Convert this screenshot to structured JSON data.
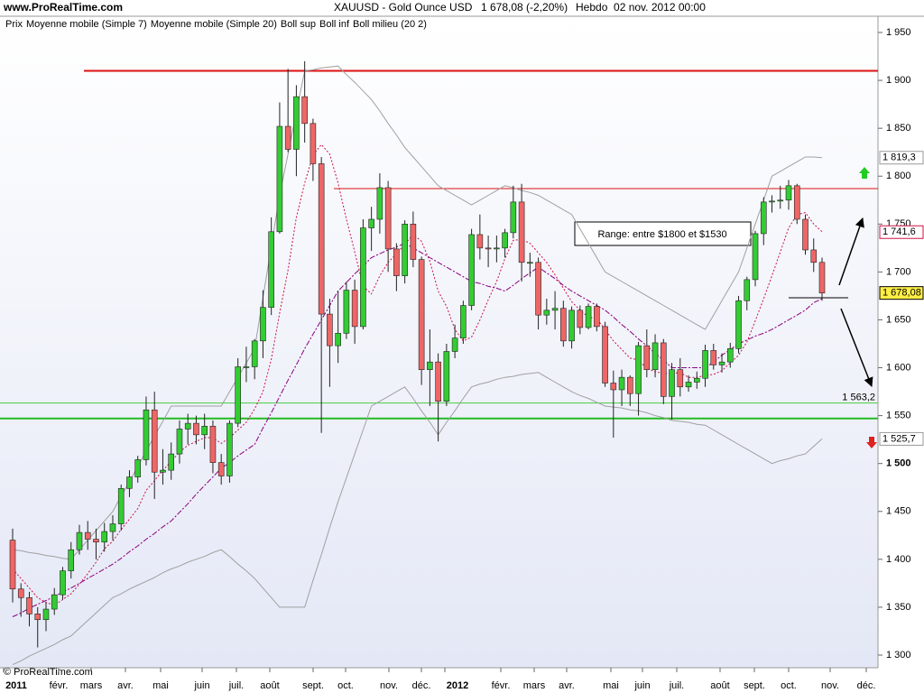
{
  "site": "www.ProRealTime.com",
  "footer": "© ProRealTime.com",
  "chart_data": {
    "type": "candlestick",
    "title": "XAUUSD - Gold Ounce USD",
    "last": "1 678,08 (-2,20%)",
    "period": "Hebdo  02 nov. 2012 00:00",
    "price_name": "Prix",
    "up_color": "#33cc33",
    "down_color": "#ee6666",
    "xtick_labels": [
      "2011",
      "févr.",
      "mars",
      "avr.",
      "mai",
      "juin",
      "juil.",
      "août",
      "sept.",
      "oct.",
      "nov.",
      "déc.",
      "2012",
      "févr.",
      "mars",
      "avr.",
      "mai",
      "juin",
      "juil.",
      "août",
      "sept.",
      "oct.",
      "nov.",
      "déc."
    ],
    "ylim": [
      1300,
      1950
    ],
    "yticks": [
      {
        "value": 1300,
        "label": "1 300"
      },
      {
        "value": 1350,
        "label": "1 350"
      },
      {
        "value": 1400,
        "label": "1 400"
      },
      {
        "value": 1450,
        "label": "1 450"
      },
      {
        "value": 1500,
        "label": "1 500"
      },
      {
        "value": 1550,
        "label": "1 550"
      },
      {
        "value": 1600,
        "label": "1 600"
      },
      {
        "value": 1650,
        "label": "1 650"
      },
      {
        "value": 1700,
        "label": "1 700"
      },
      {
        "value": 1750,
        "label": "1 750"
      },
      {
        "value": 1800,
        "label": "1 800"
      },
      {
        "value": 1850,
        "label": "1 850"
      },
      {
        "value": 1900,
        "label": "1 900"
      },
      {
        "value": 1950,
        "label": "1 950"
      }
    ],
    "open": [
      1420,
      1369,
      1360,
      1343,
      1337,
      1348,
      1363,
      1388,
      1410,
      1428,
      1421,
      1418,
      1429,
      1437,
      1474,
      1486,
      1504,
      1556,
      1491,
      1493,
      1510,
      1536,
      1542,
      1530,
      1539,
      1501,
      1487,
      1542,
      1601,
      1601,
      1628,
      1663,
      1742,
      1852,
      1828,
      1883,
      1855,
      1813,
      1656,
      1623,
      1636,
      1681,
      1643,
      1746,
      1755,
      1788,
      1724,
      1696,
      1750,
      1713,
      1598,
      1606,
      1565,
      1617,
      1631,
      1665,
      1739,
      1725,
      1724,
      1725,
      1741,
      1773,
      1710,
      1710,
      1655,
      1660,
      1662,
      1628,
      1660,
      1642,
      1664,
      1643,
      1584,
      1577,
      1590,
      1573,
      1623,
      1598,
      1626,
      1570,
      1598,
      1580,
      1585,
      1589,
      1618,
      1603,
      1606,
      1620,
      1670,
      1692,
      1740,
      1773,
      1774,
      1775,
      1790,
      1755,
      1723,
      1710
    ],
    "high": [
      1432,
      1375,
      1366,
      1350,
      1355,
      1370,
      1392,
      1418,
      1436,
      1440,
      1432,
      1438,
      1446,
      1478,
      1493,
      1508,
      1570,
      1575,
      1515,
      1522,
      1545,
      1552,
      1550,
      1552,
      1545,
      1510,
      1545,
      1610,
      1622,
      1630,
      1681,
      1757,
      1877,
      1912,
      1895,
      1920,
      1860,
      1820,
      1672,
      1680,
      1690,
      1692,
      1755,
      1768,
      1803,
      1795,
      1730,
      1754,
      1763,
      1716,
      1640,
      1615,
      1625,
      1645,
      1670,
      1745,
      1760,
      1738,
      1738,
      1745,
      1790,
      1792,
      1720,
      1715,
      1672,
      1680,
      1670,
      1664,
      1665,
      1667,
      1667,
      1648,
      1597,
      1598,
      1592,
      1627,
      1640,
      1635,
      1630,
      1605,
      1610,
      1592,
      1596,
      1624,
      1625,
      1615,
      1626,
      1675,
      1695,
      1743,
      1778,
      1780,
      1790,
      1796,
      1792,
      1760,
      1735,
      1715
    ],
    "low": [
      1355,
      1340,
      1330,
      1308,
      1325,
      1342,
      1358,
      1380,
      1405,
      1410,
      1400,
      1408,
      1420,
      1430,
      1465,
      1480,
      1498,
      1463,
      1478,
      1483,
      1500,
      1520,
      1520,
      1515,
      1490,
      1478,
      1480,
      1538,
      1585,
      1588,
      1610,
      1655,
      1740,
      1825,
      1800,
      1835,
      1795,
      1532,
      1580,
      1605,
      1630,
      1625,
      1640,
      1722,
      1740,
      1700,
      1680,
      1688,
      1705,
      1582,
      1560,
      1523,
      1560,
      1610,
      1625,
      1660,
      1713,
      1705,
      1710,
      1715,
      1735,
      1690,
      1695,
      1640,
      1645,
      1640,
      1622,
      1620,
      1635,
      1640,
      1638,
      1580,
      1527,
      1560,
      1560,
      1550,
      1590,
      1590,
      1562,
      1546,
      1570,
      1575,
      1578,
      1580,
      1598,
      1595,
      1600,
      1615,
      1660,
      1685,
      1728,
      1762,
      1766,
      1765,
      1750,
      1718,
      1700,
      1670
    ],
    "close": [
      1369,
      1360,
      1343,
      1337,
      1348,
      1363,
      1388,
      1410,
      1428,
      1421,
      1418,
      1429,
      1437,
      1474,
      1486,
      1504,
      1556,
      1491,
      1493,
      1510,
      1536,
      1542,
      1530,
      1539,
      1501,
      1487,
      1542,
      1601,
      1601,
      1628,
      1663,
      1742,
      1852,
      1828,
      1883,
      1855,
      1813,
      1656,
      1623,
      1636,
      1681,
      1643,
      1746,
      1755,
      1788,
      1724,
      1696,
      1750,
      1713,
      1598,
      1606,
      1565,
      1617,
      1631,
      1665,
      1739,
      1725,
      1724,
      1725,
      1741,
      1773,
      1710,
      1710,
      1655,
      1660,
      1662,
      1628,
      1660,
      1642,
      1664,
      1643,
      1584,
      1577,
      1590,
      1573,
      1623,
      1598,
      1626,
      1570,
      1598,
      1580,
      1585,
      1589,
      1618,
      1603,
      1606,
      1620,
      1670,
      1692,
      1740,
      1773,
      1774,
      1775,
      1790,
      1755,
      1723,
      1710,
      1678
    ],
    "series": [
      {
        "name": "Moyenne mobile (Simple 7)",
        "color": "#cc1144",
        "style": "dot",
        "values": [
          1390,
          1380,
          1370,
          1360,
          1355,
          1352,
          1358,
          1364,
          1374,
          1385,
          1397,
          1411,
          1419,
          1431,
          1442,
          1453,
          1472,
          1482,
          1493,
          1502,
          1512,
          1519,
          1523,
          1527,
          1527,
          1521,
          1527,
          1535,
          1543,
          1557,
          1575,
          1609,
          1657,
          1702,
          1757,
          1793,
          1822,
          1833,
          1823,
          1793,
          1755,
          1721,
          1685,
          1677,
          1696,
          1710,
          1719,
          1729,
          1739,
          1732,
          1711,
          1680,
          1664,
          1640,
          1628,
          1632,
          1650,
          1671,
          1690,
          1714,
          1733,
          1734,
          1730,
          1720,
          1710,
          1697,
          1683,
          1669,
          1660,
          1653,
          1651,
          1640,
          1628,
          1619,
          1610,
          1608,
          1599,
          1596,
          1594,
          1594,
          1595,
          1590,
          1590,
          1592,
          1593,
          1597,
          1605,
          1613,
          1627,
          1649,
          1672,
          1696,
          1721,
          1746,
          1760,
          1762,
          1750,
          1742
        ]
      },
      {
        "name": "Moyenne mobile (Simple 20)",
        "color": "#e07080",
        "style": "dot",
        "values": [
          1340,
          1344,
          1349,
          1353,
          1357,
          1361,
          1366,
          1370,
          1375,
          1380,
          1385,
          1390,
          1395,
          1401,
          1408,
          1414,
          1421,
          1427,
          1434,
          1440,
          1449,
          1458,
          1468,
          1477,
          1486,
          1495,
          1501,
          1508,
          1514,
          1520,
          1537,
          1553,
          1570,
          1587,
          1603,
          1620,
          1635,
          1650,
          1665,
          1680,
          1689,
          1698,
          1706,
          1715,
          1719,
          1723,
          1726,
          1730,
          1725,
          1720,
          1715,
          1710,
          1705,
          1700,
          1695,
          1690,
          1688,
          1685,
          1683,
          1680,
          1686,
          1693,
          1699,
          1705,
          1699,
          1693,
          1686,
          1680,
          1675,
          1670,
          1665,
          1660,
          1653,
          1645,
          1638,
          1630,
          1623,
          1615,
          1608,
          1600,
          1600,
          1600,
          1600,
          1600,
          1606,
          1613,
          1619,
          1625,
          1629,
          1633,
          1636,
          1640,
          1645,
          1650,
          1655,
          1660,
          1668,
          1672
        ]
      },
      {
        "name": "Boll sup",
        "color": "#a0a0a0",
        "style": "solid",
        "values": [
          1410,
          1409,
          1407,
          1406,
          1404,
          1403,
          1401,
          1400,
          1410,
          1420,
          1430,
          1440,
          1450,
          1466,
          1481,
          1497,
          1513,
          1529,
          1544,
          1560,
          1560,
          1560,
          1560,
          1560,
          1560,
          1560,
          1575,
          1590,
          1605,
          1620,
          1673,
          1727,
          1780,
          1823,
          1867,
          1910,
          1911,
          1913,
          1914,
          1915,
          1906,
          1898,
          1889,
          1880,
          1868,
          1855,
          1843,
          1830,
          1820,
          1810,
          1800,
          1790,
          1785,
          1780,
          1775,
          1770,
          1775,
          1780,
          1785,
          1790,
          1788,
          1785,
          1783,
          1780,
          1775,
          1770,
          1765,
          1760,
          1745,
          1730,
          1715,
          1700,
          1695,
          1690,
          1685,
          1680,
          1675,
          1670,
          1665,
          1660,
          1655,
          1650,
          1645,
          1640,
          1655,
          1670,
          1685,
          1700,
          1725,
          1750,
          1775,
          1800,
          1805,
          1810,
          1815,
          1820,
          1820,
          1819.3
        ]
      },
      {
        "name": "Boll inf",
        "color": "#a0a0a0",
        "style": "solid",
        "values": [
          1290,
          1294,
          1299,
          1303,
          1307,
          1311,
          1316,
          1320,
          1328,
          1336,
          1344,
          1352,
          1360,
          1364,
          1369,
          1373,
          1377,
          1381,
          1386,
          1390,
          1393,
          1397,
          1400,
          1403,
          1407,
          1410,
          1403,
          1395,
          1388,
          1380,
          1370,
          1360,
          1350,
          1350,
          1350,
          1350,
          1378,
          1405,
          1433,
          1460,
          1485,
          1510,
          1535,
          1560,
          1565,
          1570,
          1575,
          1580,
          1568,
          1555,
          1543,
          1530,
          1543,
          1555,
          1568,
          1580,
          1583,
          1585,
          1588,
          1590,
          1591,
          1593,
          1594,
          1595,
          1590,
          1585,
          1580,
          1575,
          1571,
          1568,
          1564,
          1560,
          1559,
          1558,
          1556,
          1555,
          1553,
          1550,
          1548,
          1545,
          1544,
          1543,
          1541,
          1540,
          1535,
          1530,
          1525,
          1520,
          1515,
          1510,
          1505,
          1500,
          1503,
          1505,
          1508,
          1510,
          1518,
          1525.7
        ]
      },
      {
        "name": "Boll milieu (20 2)",
        "color": "#8a0a8a",
        "style": "dashdot",
        "values": [
          1340,
          1344,
          1349,
          1353,
          1357,
          1361,
          1366,
          1370,
          1375,
          1380,
          1385,
          1390,
          1395,
          1401,
          1408,
          1414,
          1421,
          1427,
          1434,
          1440,
          1449,
          1458,
          1468,
          1477,
          1486,
          1495,
          1501,
          1508,
          1514,
          1520,
          1537,
          1553,
          1570,
          1587,
          1603,
          1620,
          1635,
          1650,
          1665,
          1680,
          1689,
          1698,
          1706,
          1715,
          1719,
          1723,
          1726,
          1730,
          1725,
          1720,
          1715,
          1710,
          1705,
          1700,
          1695,
          1690,
          1688,
          1685,
          1683,
          1680,
          1686,
          1693,
          1699,
          1705,
          1699,
          1693,
          1686,
          1680,
          1675,
          1670,
          1665,
          1660,
          1653,
          1645,
          1638,
          1630,
          1623,
          1615,
          1608,
          1600,
          1600,
          1600,
          1600,
          1600,
          1606,
          1613,
          1619,
          1625,
          1629,
          1633,
          1636,
          1640,
          1645,
          1650,
          1655,
          1660,
          1668,
          1672
        ]
      }
    ],
    "levels": [
      {
        "value": 1910,
        "color": "#dd1111",
        "width": 2
      },
      {
        "value": 1787,
        "color": "#dd1111",
        "width": 1
      },
      {
        "value": 1563.2,
        "color": "#44cc44",
        "width": 1,
        "label": "1 563,2"
      },
      {
        "value": 1547,
        "color": "#22bb22",
        "width": 2
      }
    ],
    "price_labels": [
      {
        "value": 1819.3,
        "label": "1 819,3",
        "color": "#999999",
        "bg": "#ffffff"
      },
      {
        "value": 1741.6,
        "label": "1 741,6",
        "color": "#cc1144",
        "bg": "#ffffff"
      },
      {
        "value": 1678.08,
        "label": "1 678,08",
        "color": "#000000",
        "bg": "#ffee44"
      },
      {
        "value": 1525.7,
        "label": "1 525,7",
        "color": "#999999",
        "bg": "#ffffff"
      }
    ],
    "annotation": "Range: entre $1800 et $1530"
  }
}
